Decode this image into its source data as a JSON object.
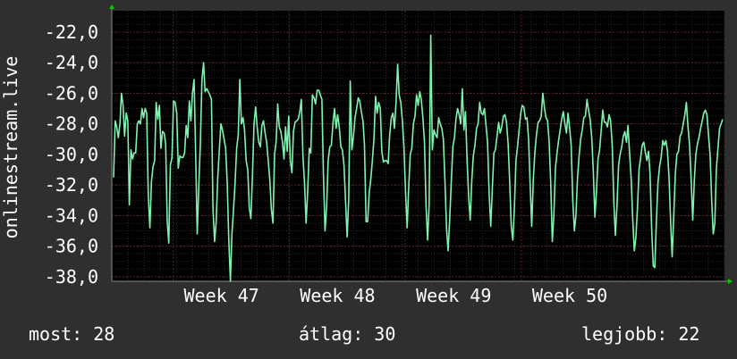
{
  "colors": {
    "background": "#2f2f2f",
    "plot_background": "#000000",
    "grid_major": "#5a1e1e",
    "grid_minor": "#2a2a2a",
    "series": "#7ff2b0",
    "axis_arrow": "#00cc00",
    "text": "#ffffff"
  },
  "legend": {
    "now_label": "most:",
    "now_value": "28",
    "avg_label": "átlag:",
    "avg_value": "30",
    "best_label": "legjobb:",
    "best_value": "22"
  },
  "chart_data": {
    "type": "line",
    "ylabel": "onlinestream.live",
    "xlabel": "",
    "title": "",
    "ylim": [
      -38.3,
      -20.6
    ],
    "yticks": [
      -22,
      -24,
      -26,
      -28,
      -30,
      -32,
      -34,
      -36,
      -38
    ],
    "ytick_labels": [
      "-22,0",
      "-24,0",
      "-26,0",
      "-28,0",
      "-30,0",
      "-32,0",
      "-34,0",
      "-36,0",
      "-38,0"
    ],
    "xlim": [
      0,
      380
    ],
    "xticks": [
      {
        "label": "Week 47",
        "x": 38
      },
      {
        "label": "Week 48",
        "x": 110
      },
      {
        "label": "Week 49",
        "x": 182
      },
      {
        "label": "Week 50",
        "x": 254
      }
    ],
    "grid": true,
    "series": [
      {
        "values": [
          -31.5,
          -27.8,
          -28.2,
          -28.9,
          -28.0,
          -26.0,
          -26.8,
          -28.8,
          -27.3,
          -27.8,
          -33.3,
          -29.7,
          -30.3,
          -29.9,
          -29.9,
          -28.0,
          -27.8,
          -28.0,
          -27.0,
          -27.6,
          -27.0,
          -27.3,
          -32.7,
          -34.8,
          -31.8,
          -30.8,
          -30.4,
          -26.6,
          -27.7,
          -26.8,
          -29.6,
          -28.5,
          -28.6,
          -29.3,
          -34.4,
          -35.8,
          -30.7,
          -30.2,
          -26.5,
          -26.6,
          -27.3,
          -30.9,
          -30.1,
          -30.2,
          -30.2,
          -29.9,
          -28.1,
          -28.9,
          -26.5,
          -27.8,
          -26.0,
          -25.1,
          -29.8,
          -35.2,
          -32.0,
          -29.3,
          -25.1,
          -24.0,
          -25.9,
          -25.7,
          -25.9,
          -26.1,
          -26.4,
          -33.5,
          -35.7,
          -34.4,
          -31.6,
          -29.7,
          -28.0,
          -28.4,
          -29.0,
          -29.6,
          -31.8,
          -35.6,
          -38.3,
          -35.2,
          -33.6,
          -31.9,
          -29.6,
          -28.7,
          -27.9,
          -28.0,
          -27.6,
          -28.4,
          -30.4,
          -31.0,
          -33.5,
          -34.2,
          -31.3,
          -28.0,
          -26.9,
          -28.2,
          -29.2,
          -29.5,
          -28.1,
          -27.8,
          -28.6,
          -29.2,
          -30.4,
          -31.7,
          -33.6,
          -34.5,
          -30.0,
          -29.2,
          -26.7,
          -28.2,
          -28.5,
          -29.2,
          -30.3,
          -28.2,
          -29.8,
          -27.5,
          -30.4,
          -31.2,
          -28.5,
          -27.9,
          -27.8,
          -27.7,
          -27.2,
          -26.4,
          -30.1,
          -31.9,
          -34.5,
          -32.4,
          -29.6,
          -29.9,
          -26.1,
          -26.3,
          -26.7,
          -25.8,
          -25.8,
          -26.1,
          -26.4,
          -31.3,
          -35.0,
          -33.4,
          -30.4,
          -29.5,
          -29.4,
          -28.0,
          -27.0,
          -28.3,
          -27.4,
          -28.2,
          -29.5,
          -29.7,
          -30.7,
          -33.0,
          -35.4,
          -32.9,
          -30.4,
          -29.7,
          -28.8,
          -27.6,
          -27.0,
          -26.3,
          -26.5,
          -27.2,
          -27.8,
          -29.4,
          -34.4,
          -34.4,
          -32.5,
          -31.6,
          -30.4,
          -29.0,
          -26.2,
          -27.3,
          -26.6,
          -27.0,
          -29.8,
          -30.5,
          -30.4,
          -30.4,
          -30.6,
          -28.7,
          -27.6,
          -27.3,
          -28.3,
          -26.6,
          -24.1,
          -26.1,
          -26.6,
          -27.8,
          -29.5,
          -32.4,
          -34.8,
          -32.2,
          -30.0,
          -29.6,
          -28.0,
          -27.5,
          -26.1,
          -26.8,
          -25.9,
          -26.4,
          -27.6,
          -29.2,
          -33.3,
          -35.6,
          -33.3,
          -29.9,
          -29.7,
          -28.4,
          -28.7,
          -28.9,
          -27.6,
          -28.0,
          -28.3,
          -29.0,
          -31.8,
          -34.9,
          -36.3,
          -34.2,
          -31.9,
          -29.5,
          -28.9,
          -27.7,
          -27.0,
          -27.4,
          -28.0,
          -25.7,
          -28.4,
          -27.2,
          -30.3,
          -32.8,
          -34.3,
          -31.7,
          -30.1,
          -29.4,
          -28.3,
          -28.0,
          -26.6,
          -27.3,
          -27.4,
          -27.0,
          -28.1,
          -29.2,
          -32.6,
          -34.7,
          -32.3,
          -29.9,
          -29.7,
          -28.8,
          -27.9,
          -28.6,
          -28.2,
          -27.5,
          -27.4,
          -27.9,
          -29.3,
          -31.7,
          -34.7,
          -35.6,
          -33.5,
          -30.4,
          -29.5,
          -28.4,
          -27.3,
          -26.8,
          -26.9,
          -27.7,
          -27.6,
          -29.0,
          -32.1,
          -34.7,
          -31.6,
          -29.8,
          -28.7,
          -27.9,
          -27.8,
          -27.5,
          -26.0,
          -26.9,
          -27.6,
          -27.8,
          -29.1,
          -31.8,
          -35.7,
          -34.0,
          -30.9,
          -29.9,
          -29.1,
          -28.4,
          -27.7,
          -27.2,
          -28.0,
          -28.6,
          -27.3,
          -28.3,
          -29.4,
          -33.0,
          -35.0,
          -34.0,
          -31.5,
          -30.1,
          -29.0,
          -28.4,
          -27.6,
          -27.5,
          -26.4,
          -27.1,
          -27.7,
          -28.9,
          -31.0,
          -34.1,
          -32.4,
          -30.3,
          -29.7,
          -28.4,
          -27.1,
          -27.9,
          -27.9,
          -28.2,
          -27.4,
          -27.8,
          -29.4,
          -33.1,
          -35.3,
          -33.4,
          -30.7,
          -30.0,
          -29.5,
          -28.8,
          -28.5,
          -29.2,
          -28.1,
          -29.9,
          -31.6,
          -34.2,
          -36.3,
          -35.4,
          -33.5,
          -31.0,
          -30.2,
          -29.4,
          -29.2,
          -29.9,
          -30.4,
          -29.8,
          -31.3,
          -34.9,
          -37.3,
          -37.4,
          -34.3,
          -31.8,
          -30.8,
          -30.2,
          -29.1,
          -29.4,
          -29.1,
          -29.8,
          -31.5,
          -34.4,
          -36.7,
          -34.0,
          -31.2,
          -30.0,
          -29.8,
          -28.8,
          -28.6,
          -28.0,
          -27.4,
          -26.6,
          -28.2,
          -29.4,
          -31.6,
          -34.3,
          -31.8,
          -30.0,
          -29.3,
          -28.9,
          -28.3,
          -27.8,
          -27.3,
          -27.1,
          -27.4,
          -28.7,
          -30.0,
          -33.0,
          -35.2,
          -34.5,
          -31.0,
          -29.6,
          -28.3,
          -28.0,
          -27.7
        ],
        "spikes": [
          {
            "i": 201,
            "v": -22.2
          },
          {
            "i": 150,
            "v": -25.2
          },
          {
            "i": 80,
            "v": -25.1
          }
        ]
      }
    ]
  }
}
